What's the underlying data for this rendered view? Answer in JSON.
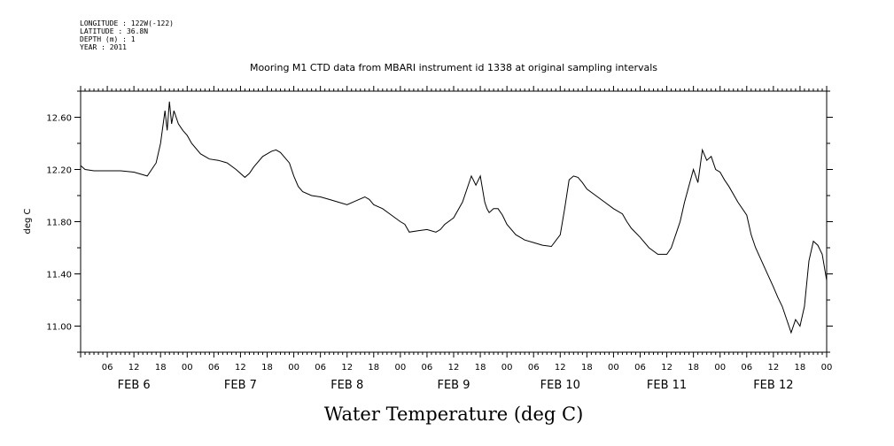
{
  "header": {
    "longitude": "LONGITUDE : 122W(-122)",
    "latitude": "LATITUDE : 36.8N",
    "depth": "DEPTH (m) : 1",
    "year": "YEAR : 2011"
  },
  "chart_data": {
    "type": "line",
    "title": "Mooring M1 CTD data from MBARI instrument id 1338 at original sampling intervals",
    "xlabel": "Water Temperature (deg C)",
    "ylabel": "deg C",
    "xlim_hours": [
      0,
      168
    ],
    "ylim": [
      10.8,
      12.8
    ],
    "y_ticks": [
      11.0,
      11.4,
      11.8,
      12.2,
      12.6
    ],
    "y_tick_labels": [
      "11.00",
      "11.40",
      "11.80",
      "12.20",
      "12.60"
    ],
    "x_tick_labels": [
      "06",
      "12",
      "18",
      "00",
      "06",
      "12",
      "18",
      "00",
      "06",
      "12",
      "18",
      "00",
      "06",
      "12",
      "18",
      "00",
      "06",
      "12",
      "18",
      "00",
      "06",
      "12",
      "18",
      "00",
      "06",
      "12",
      "18",
      "00"
    ],
    "date_labels": [
      "FEB  6",
      "FEB  7",
      "FEB  8",
      "FEB  9",
      "FEB 10",
      "FEB 11",
      "FEB 12"
    ],
    "grid": false,
    "series": [
      {
        "x": [
          0,
          1,
          3,
          6,
          9,
          12,
          15,
          17,
          18,
          19,
          19.5,
          20,
          20.5,
          21,
          22,
          23,
          24,
          25,
          27,
          29,
          31,
          33,
          35,
          37,
          38,
          39,
          41,
          43,
          44,
          45,
          47,
          48,
          49,
          50,
          52,
          54,
          56,
          58,
          60,
          62,
          64,
          65,
          66,
          68,
          70,
          72,
          73,
          74,
          76,
          78,
          80,
          81,
          82,
          84,
          86,
          88,
          89,
          90,
          91,
          91.5,
          92,
          93,
          94,
          95,
          96,
          98,
          99,
          100,
          102,
          104,
          106,
          108,
          109,
          110,
          111,
          112,
          113,
          114,
          116,
          118,
          120,
          122,
          123,
          124,
          126,
          128,
          130,
          132,
          133,
          134,
          135,
          136,
          138,
          139,
          140,
          141,
          142,
          143,
          144,
          145,
          146,
          148,
          150,
          151,
          152,
          154,
          156,
          157,
          158,
          159,
          160,
          161,
          162,
          163,
          164,
          165,
          166,
          167,
          168
        ],
        "y": [
          12.23,
          12.2,
          12.19,
          12.19,
          12.19,
          12.18,
          12.15,
          12.25,
          12.4,
          12.65,
          12.5,
          12.72,
          12.55,
          12.65,
          12.55,
          12.5,
          12.46,
          12.4,
          12.32,
          12.28,
          12.27,
          12.25,
          12.2,
          12.14,
          12.17,
          12.22,
          12.3,
          12.34,
          12.35,
          12.33,
          12.25,
          12.15,
          12.07,
          12.03,
          12.0,
          11.99,
          11.97,
          11.95,
          11.93,
          11.96,
          11.99,
          11.97,
          11.93,
          11.9,
          11.85,
          11.8,
          11.78,
          11.72,
          11.73,
          11.74,
          11.72,
          11.74,
          11.78,
          11.83,
          11.95,
          12.15,
          12.08,
          12.15,
          11.95,
          11.9,
          11.87,
          11.9,
          11.9,
          11.85,
          11.78,
          11.7,
          11.68,
          11.66,
          11.64,
          11.62,
          11.61,
          11.7,
          11.9,
          12.12,
          12.15,
          12.14,
          12.1,
          12.05,
          12.0,
          11.95,
          11.9,
          11.86,
          11.8,
          11.75,
          11.68,
          11.6,
          11.55,
          11.55,
          11.6,
          11.7,
          11.8,
          11.95,
          12.2,
          12.1,
          12.35,
          12.27,
          12.3,
          12.2,
          12.18,
          12.12,
          12.07,
          11.95,
          11.85,
          11.7,
          11.6,
          11.45,
          11.3,
          11.22,
          11.15,
          11.05,
          10.95,
          11.05,
          11.0,
          11.15,
          11.5,
          11.65,
          11.62,
          11.55,
          11.35
        ]
      }
    ]
  }
}
